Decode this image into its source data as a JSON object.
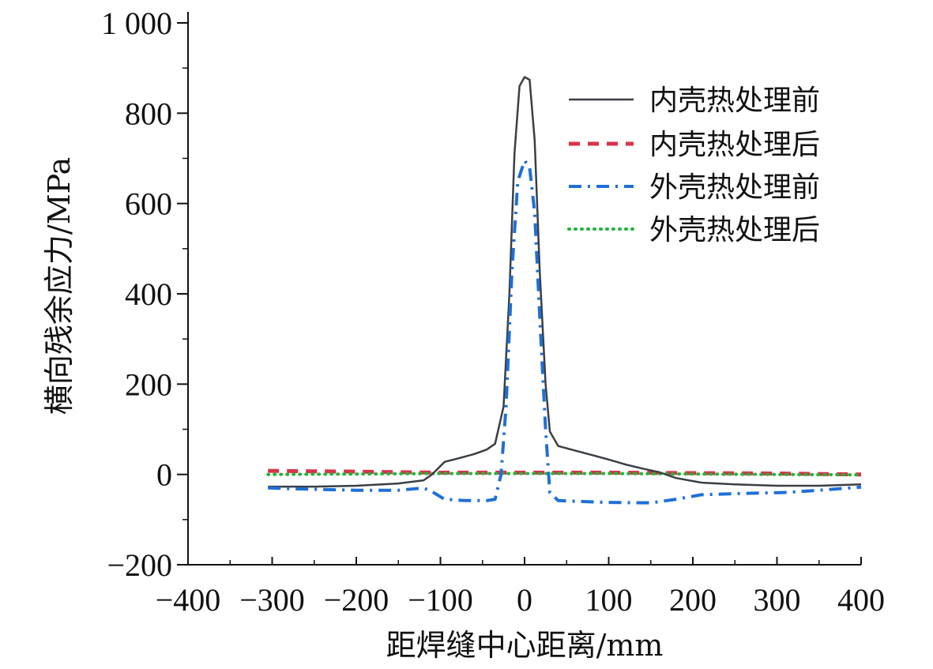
{
  "chart_data": {
    "type": "line",
    "title": "",
    "xlabel": "距焊缝中心距离/mm",
    "ylabel": "横向残余应力/MPa",
    "xlim": [
      -400,
      400
    ],
    "ylim": [
      -200,
      1000
    ],
    "xticks": [
      {
        "value": -400,
        "label": "−400"
      },
      {
        "value": -300,
        "label": "−300"
      },
      {
        "value": -200,
        "label": "−200"
      },
      {
        "value": -100,
        "label": "−100"
      },
      {
        "value": 0,
        "label": "0"
      },
      {
        "value": 100,
        "label": "100"
      },
      {
        "value": 200,
        "label": "200"
      },
      {
        "value": 300,
        "label": "300"
      },
      {
        "value": 400,
        "label": "400"
      }
    ],
    "yticks": [
      {
        "value": -200,
        "label": "−200"
      },
      {
        "value": 0,
        "label": "0"
      },
      {
        "value": 200,
        "label": "200"
      },
      {
        "value": 400,
        "label": "400"
      },
      {
        "value": 600,
        "label": "600"
      },
      {
        "value": 800,
        "label": "800"
      },
      {
        "value": 1000,
        "label": "1 000"
      }
    ],
    "legend_position": "top-right",
    "series": [
      {
        "name": "内壳热处理前",
        "color": "#3a3f44",
        "style": "solid",
        "points": [
          [
            -305,
            -27
          ],
          [
            -250,
            -27
          ],
          [
            -200,
            -25
          ],
          [
            -150,
            -20
          ],
          [
            -120,
            -13
          ],
          [
            -110,
            0
          ],
          [
            -95,
            28
          ],
          [
            -80,
            35
          ],
          [
            -60,
            45
          ],
          [
            -45,
            55
          ],
          [
            -35,
            68
          ],
          [
            -25,
            150
          ],
          [
            -18,
            400
          ],
          [
            -12,
            710
          ],
          [
            -6,
            860
          ],
          [
            0,
            880
          ],
          [
            6,
            874
          ],
          [
            12,
            740
          ],
          [
            18,
            450
          ],
          [
            25,
            200
          ],
          [
            30,
            95
          ],
          [
            40,
            63
          ],
          [
            60,
            53
          ],
          [
            80,
            43
          ],
          [
            100,
            33
          ],
          [
            120,
            22
          ],
          [
            140,
            13
          ],
          [
            160,
            5
          ],
          [
            180,
            -8
          ],
          [
            210,
            -18
          ],
          [
            250,
            -22
          ],
          [
            300,
            -25
          ],
          [
            350,
            -25
          ],
          [
            400,
            -22
          ]
        ]
      },
      {
        "name": "内壳热处理后",
        "color": "#d8334a",
        "style": "dashed",
        "points": [
          [
            -305,
            8
          ],
          [
            -200,
            6
          ],
          [
            -100,
            4
          ],
          [
            0,
            4
          ],
          [
            100,
            4
          ],
          [
            200,
            3
          ],
          [
            300,
            2
          ],
          [
            400,
            0
          ]
        ]
      },
      {
        "name": "外壳热处理前",
        "color": "#1f6fd6",
        "style": "dashdot",
        "points": [
          [
            -305,
            -30
          ],
          [
            -250,
            -33
          ],
          [
            -200,
            -35
          ],
          [
            -150,
            -35
          ],
          [
            -120,
            -30
          ],
          [
            -110,
            -38
          ],
          [
            -95,
            -55
          ],
          [
            -70,
            -58
          ],
          [
            -45,
            -58
          ],
          [
            -35,
            -55
          ],
          [
            -28,
            0
          ],
          [
            -22,
            150
          ],
          [
            -15,
            450
          ],
          [
            -8,
            650
          ],
          [
            0,
            695
          ],
          [
            6,
            680
          ],
          [
            12,
            580
          ],
          [
            18,
            350
          ],
          [
            25,
            100
          ],
          [
            30,
            -40
          ],
          [
            40,
            -58
          ],
          [
            70,
            -60
          ],
          [
            100,
            -62
          ],
          [
            150,
            -63
          ],
          [
            180,
            -55
          ],
          [
            210,
            -45
          ],
          [
            260,
            -42
          ],
          [
            310,
            -40
          ],
          [
            350,
            -35
          ],
          [
            400,
            -28
          ]
        ]
      },
      {
        "name": "外壳热处理后",
        "color": "#22b43a",
        "style": "dotted",
        "points": [
          [
            -305,
            0
          ],
          [
            -200,
            1
          ],
          [
            -100,
            2
          ],
          [
            0,
            2
          ],
          [
            100,
            2
          ],
          [
            200,
            1
          ],
          [
            300,
            0
          ],
          [
            400,
            -1
          ]
        ]
      }
    ]
  }
}
